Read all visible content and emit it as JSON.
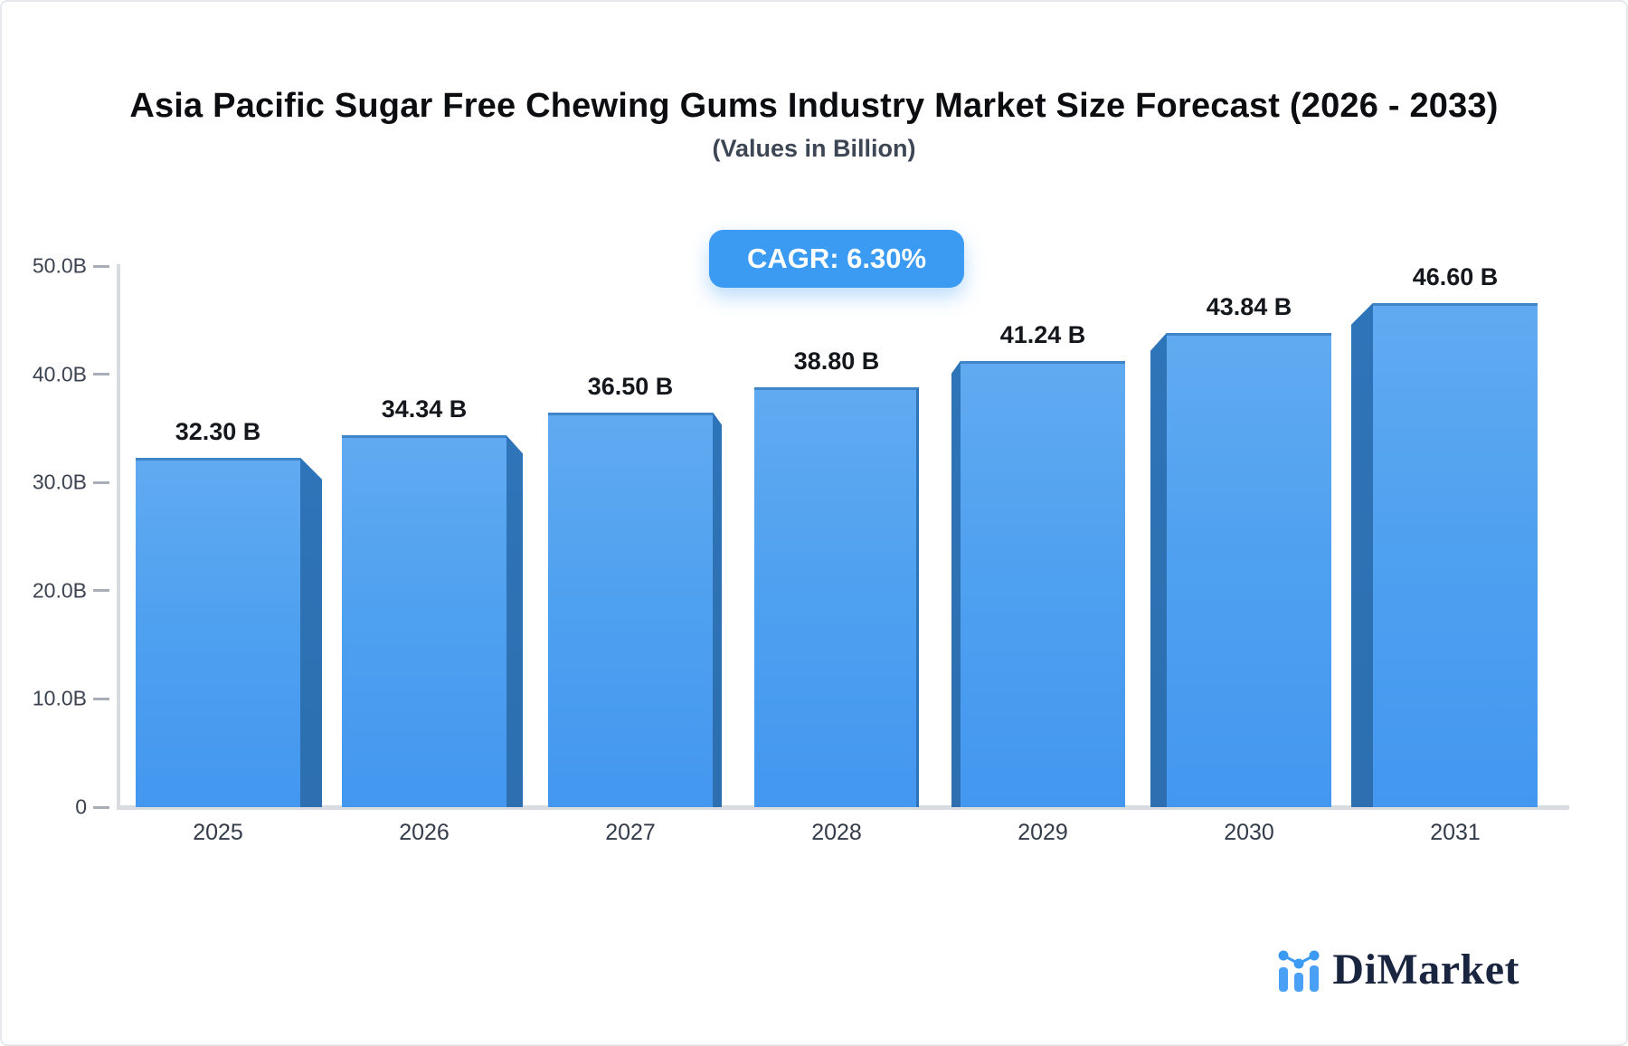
{
  "header": {
    "title": "Asia Pacific Sugar Free Chewing Gums Industry Market Size Forecast (2026 - 2033)",
    "subtitle": "(Values in Billion)",
    "cagr_label": "CAGR: 6.30%"
  },
  "chart_data": {
    "type": "bar",
    "title": "Asia Pacific Sugar Free Chewing Gums Industry Market Size Forecast (2026 - 2033)",
    "subtitle": "(Values in Billion)",
    "categories": [
      "2025",
      "2026",
      "2027",
      "2028",
      "2029",
      "2030",
      "2031"
    ],
    "values": [
      32.3,
      34.34,
      36.5,
      38.8,
      41.24,
      43.84,
      46.6
    ],
    "value_labels": [
      "32.30 B",
      "34.34 B",
      "36.50 B",
      "38.80 B",
      "41.24 B",
      "43.84 B",
      "46.60 B"
    ],
    "y_ticks": [
      "50.0B",
      "40.0B",
      "30.0B",
      "20.0B",
      "10.0B",
      "0"
    ],
    "ylim": [
      0,
      50
    ],
    "xlabel": "",
    "ylabel": "",
    "grid": false,
    "legend": "none",
    "annotation": "CAGR: 6.30%",
    "bar_style": "3d-extruded, perspective toward center bar",
    "colors": {
      "bar_face_top": "#61aaf1",
      "bar_face_bottom": "#4397ef",
      "bar_side": "#2e74b8",
      "badge": "#3b9af2"
    }
  },
  "footer": {
    "brand": "DiMarket",
    "logo_icon": "bar-line-chart-icon"
  },
  "colors": {
    "accent_blue": "#3b9af2",
    "axis_line": "#d8dbe0",
    "tick": "#a8aeb8",
    "title_text": "#0c0d10",
    "subtitle_text": "#3d4654",
    "axis_label": "#3c4350",
    "logo_navy": "#1a2540"
  }
}
